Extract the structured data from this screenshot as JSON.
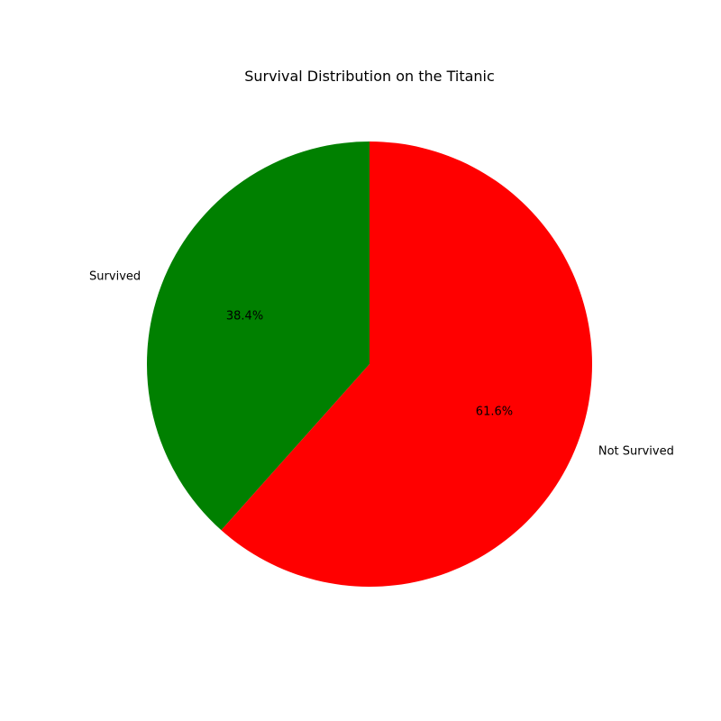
{
  "chart_data": {
    "type": "pie",
    "title": "Survival Distribution on the Titanic",
    "slices": [
      {
        "label": "Survived",
        "value": 38.4,
        "pct_label": "38.4%",
        "color": "#008000"
      },
      {
        "label": "Not Survived",
        "value": 61.6,
        "pct_label": "61.6%",
        "color": "#ff0000"
      }
    ],
    "start_angle_deg": 90,
    "direction": "counterclockwise",
    "legend": "none"
  }
}
